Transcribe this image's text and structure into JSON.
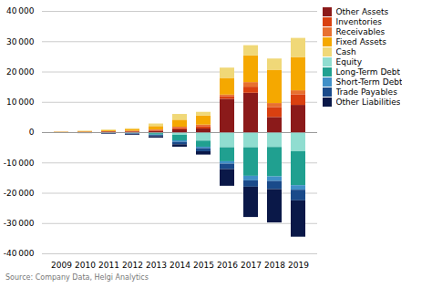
{
  "chart_data": {
    "type": "bar",
    "stacked": true,
    "categories": [
      "2009",
      "2010",
      "2011",
      "2012",
      "2013",
      "2014",
      "2015",
      "2016",
      "2017",
      "2018",
      "2019"
    ],
    "series": [
      {
        "name": "Other Assets",
        "color": "#8B1A1A",
        "values": [
          50,
          100,
          200,
          200,
          400,
          900,
          1200,
          11000,
          13000,
          5000,
          9000
        ]
      },
      {
        "name": "Inventories",
        "color": "#D94010",
        "values": [
          20,
          50,
          80,
          150,
          300,
          500,
          800,
          900,
          2000,
          3300,
          3500
        ]
      },
      {
        "name": "Receivables",
        "color": "#E87030",
        "values": [
          10,
          30,
          60,
          120,
          200,
          400,
          500,
          500,
          1500,
          1300,
          1300
        ]
      },
      {
        "name": "Fixed Assets",
        "color": "#F5A800",
        "values": [
          80,
          150,
          300,
          600,
          1100,
          2300,
          3000,
          5500,
          8800,
          11000,
          11000
        ]
      },
      {
        "name": "Cash",
        "color": "#F0D878",
        "values": [
          70,
          150,
          250,
          200,
          850,
          1900,
          1200,
          3400,
          3400,
          3700,
          6300
        ]
      },
      {
        "name": "Equity",
        "color": "#90DDD0",
        "values": [
          -50,
          -100,
          -200,
          -300,
          -350,
          -900,
          -2800,
          -5000,
          -5000,
          -4900,
          -6300
        ]
      },
      {
        "name": "Long-Term Debt",
        "color": "#20A090",
        "values": [
          0,
          0,
          0,
          -60,
          -450,
          -1800,
          -2000,
          -4600,
          -9400,
          -9700,
          -11200
        ]
      },
      {
        "name": "Short-Term Debt",
        "color": "#4090C8",
        "values": [
          0,
          -60,
          -80,
          -80,
          -150,
          -500,
          -500,
          -800,
          -1500,
          -1500,
          -1500
        ]
      },
      {
        "name": "Trade Payables",
        "color": "#1A4A8A",
        "values": [
          -30,
          -80,
          -150,
          -230,
          -400,
          -800,
          -1000,
          -1800,
          -2100,
          -2700,
          -3500
        ]
      },
      {
        "name": "Other Liabilities",
        "color": "#0A1848",
        "values": [
          -30,
          -80,
          -150,
          -230,
          -450,
          -800,
          -1100,
          -5500,
          -10000,
          -11000,
          -12000
        ]
      }
    ],
    "ylim": [
      -40000,
      40000
    ],
    "yticks": [
      {
        "value": -40000,
        "label": "-40 000"
      },
      {
        "value": -30000,
        "label": "-30 000"
      },
      {
        "value": -20000,
        "label": "-20 000"
      },
      {
        "value": -10000,
        "label": "-10 000"
      },
      0,
      {
        "value": 10000,
        "label": "10 000"
      },
      {
        "value": 20000,
        "label": "20 000"
      },
      {
        "value": 30000,
        "label": "30 000"
      },
      {
        "value": 40000,
        "label": "40 000"
      }
    ],
    "grid": true,
    "legend": "right",
    "annotations": [
      "Source: Company Data, Helgi Analytics"
    ]
  }
}
